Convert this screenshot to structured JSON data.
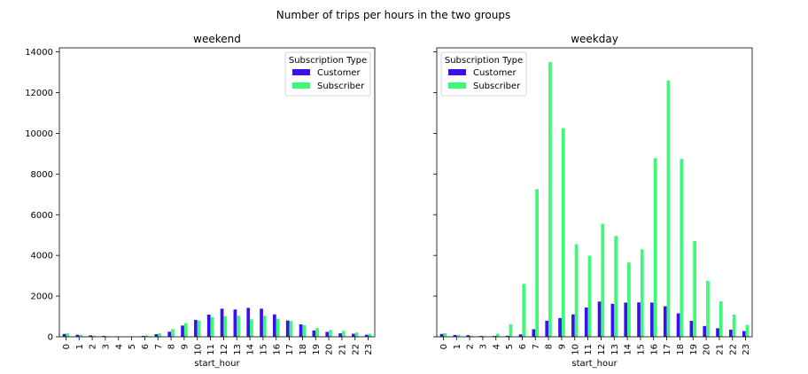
{
  "figure": {
    "suptitle": "Number of trips per hours in the two groups"
  },
  "colors": {
    "customer": "#3a0ff0",
    "subscriber": "#3cf978"
  },
  "chart_data": [
    {
      "type": "bar",
      "title": "weekend",
      "xlabel": "start_hour",
      "ylabel": "",
      "ylim": [
        0,
        14200
      ],
      "yticks": [
        0,
        2000,
        4000,
        6000,
        8000,
        10000,
        12000,
        14000
      ],
      "legend": {
        "title": "Subscription Type",
        "position": "top-right"
      },
      "categories": [
        "0",
        "1",
        "2",
        "3",
        "4",
        "5",
        "6",
        "7",
        "8",
        "9",
        "10",
        "11",
        "12",
        "13",
        "14",
        "15",
        "16",
        "17",
        "18",
        "19",
        "20",
        "21",
        "22",
        "23"
      ],
      "series": [
        {
          "name": "Customer",
          "values": [
            140,
            100,
            70,
            40,
            20,
            15,
            40,
            130,
            250,
            550,
            830,
            1090,
            1380,
            1340,
            1420,
            1380,
            1100,
            800,
            610,
            310,
            240,
            170,
            150,
            100
          ]
        },
        {
          "name": "Subscriber",
          "values": [
            170,
            90,
            50,
            30,
            15,
            20,
            70,
            170,
            380,
            670,
            790,
            970,
            1010,
            1030,
            860,
            1030,
            890,
            780,
            570,
            430,
            330,
            290,
            210,
            150
          ]
        }
      ]
    },
    {
      "type": "bar",
      "title": "weekday",
      "xlabel": "start_hour",
      "ylabel": "",
      "ylim": [
        0,
        14200
      ],
      "yticks": [
        0,
        2000,
        4000,
        6000,
        8000,
        10000,
        12000,
        14000
      ],
      "legend": {
        "title": "Subscription Type",
        "position": "top-left"
      },
      "categories": [
        "0",
        "1",
        "2",
        "3",
        "4",
        "5",
        "6",
        "7",
        "8",
        "9",
        "10",
        "11",
        "12",
        "13",
        "14",
        "15",
        "16",
        "17",
        "18",
        "19",
        "20",
        "21",
        "22",
        "23"
      ],
      "series": [
        {
          "name": "Customer",
          "values": [
            140,
            90,
            80,
            40,
            40,
            50,
            120,
            370,
            790,
            920,
            1100,
            1440,
            1730,
            1620,
            1680,
            1690,
            1680,
            1500,
            1150,
            780,
            530,
            420,
            350,
            280
          ]
        },
        {
          "name": "Subscriber",
          "values": [
            180,
            90,
            50,
            30,
            150,
            620,
            2600,
            7250,
            13500,
            10250,
            4550,
            3980,
            5550,
            4950,
            3650,
            4300,
            8780,
            12600,
            8740,
            4700,
            2750,
            1740,
            1090,
            580
          ]
        }
      ]
    }
  ]
}
